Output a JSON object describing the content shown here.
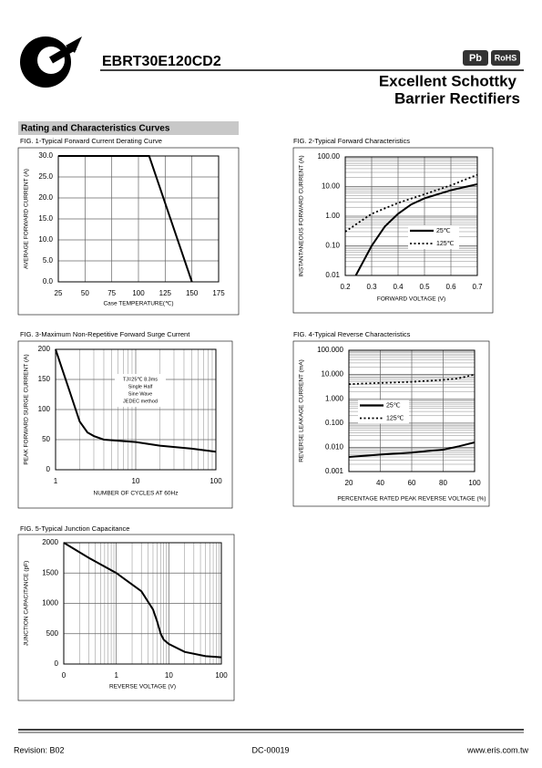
{
  "header": {
    "part_number": "EBRT30E120CD2",
    "badges": [
      "Pb",
      "RoHS"
    ],
    "title": [
      "Excellent Schottky",
      "Barrier Rectifiers"
    ],
    "section": "Rating and Characteristics Curves"
  },
  "chart_data": [
    {
      "type": "line",
      "title": "FIG. 1-Typical Forward Current Derating Curve",
      "xlabel": "Case TEMPERATURE(℃)",
      "ylabel": "AVERAGE FORWARD CURRENT (A)",
      "x": [
        25,
        110,
        150
      ],
      "values": [
        30,
        30,
        0
      ],
      "color": "#000000",
      "xlim": [
        25,
        175
      ],
      "xticks": [
        25,
        50,
        75,
        100,
        125,
        150,
        175
      ],
      "ylim": [
        0,
        30
      ],
      "yticks": [
        {
          "value": 0,
          "label": "0.0"
        },
        {
          "value": 5,
          "label": "5.0"
        },
        {
          "value": 10,
          "label": "10.0"
        },
        {
          "value": 15,
          "label": "15.0"
        },
        {
          "value": 20,
          "label": "20.0"
        },
        {
          "value": 25,
          "label": "25.0"
        },
        {
          "value": 30,
          "label": "30.0"
        }
      ],
      "grid": true
    },
    {
      "type": "line",
      "title": "FIG. 2-Typical Forward Characteristics",
      "xlabel": "FORWARD VOLTAGE (V)",
      "ylabel": "INSTANTANEOUS FORWARD CURRENT (A)",
      "yscale": "log",
      "series": [
        {
          "name": "25℃",
          "color": "#000000",
          "style": "solid",
          "x": [
            0.24,
            0.3,
            0.35,
            0.4,
            0.45,
            0.5,
            0.6,
            0.7
          ],
          "values": [
            0.01,
            0.1,
            0.45,
            1.2,
            2.5,
            4,
            7.5,
            12
          ]
        },
        {
          "name": "125℃",
          "color": "#000000",
          "style": "dotted",
          "x": [
            0.2,
            0.3,
            0.4,
            0.5,
            0.6,
            0.7
          ],
          "values": [
            0.3,
            1.2,
            2.8,
            5.5,
            11,
            25
          ]
        }
      ],
      "xlim": [
        0.2,
        0.7
      ],
      "xticks": [
        0.2,
        0.3,
        0.4,
        0.5,
        0.6,
        0.7
      ],
      "ylim": [
        0.01,
        100
      ],
      "yticks": [
        0.01,
        {
          "value": 0.1,
          "label": "0.10"
        },
        {
          "value": 1,
          "label": "1.00"
        },
        {
          "value": 10,
          "label": "10.00"
        },
        {
          "value": 100,
          "label": "100.00"
        }
      ],
      "grid": true,
      "legend": "center-right"
    },
    {
      "type": "line",
      "title": "FIG. 3-Maximum Non-Repetitive Forward Surge Current",
      "xlabel": "NUMBER OF CYCLES AT 60Hz",
      "ylabel": "PEAK FORWARD SURGE CURRENT (A)",
      "xscale": "log",
      "annotation": [
        "TJ=25℃ 8.3ms",
        "Single Half",
        "Sine Wave",
        "JEDEC method"
      ],
      "x": [
        1,
        1.5,
        2,
        2.5,
        3,
        4,
        5,
        10,
        20,
        50,
        100
      ],
      "values": [
        200,
        130,
        80,
        62,
        56,
        50,
        49,
        46,
        40,
        35,
        30
      ],
      "color": "#000000",
      "xlim": [
        1,
        100
      ],
      "xticks": [
        1,
        10,
        100
      ],
      "ylim": [
        0,
        200
      ],
      "yticks": [
        0,
        50,
        100,
        150,
        200
      ],
      "grid": true
    },
    {
      "type": "line",
      "title": "FIG. 4-Typical Reverse Characteristics",
      "xlabel": "PERCENTAGE RATED PEAK REVERSE VOLTAGE (%)",
      "ylabel": "REVERSE LEAKAGE CURRENT (mA)",
      "yscale": "log",
      "series": [
        {
          "name": "25℃",
          "color": "#000000",
          "style": "solid",
          "x": [
            20,
            40,
            60,
            70,
            80,
            90,
            100
          ],
          "values": [
            0.004,
            0.005,
            0.006,
            0.007,
            0.008,
            0.011,
            0.016
          ]
        },
        {
          "name": "125℃",
          "color": "#000000",
          "style": "dotted",
          "x": [
            20,
            40,
            60,
            80,
            90,
            100
          ],
          "values": [
            4,
            4.5,
            5,
            6,
            7,
            10
          ]
        }
      ],
      "xlim": [
        20,
        100
      ],
      "xticks": [
        20,
        40,
        60,
        80,
        100
      ],
      "ylim": [
        0.001,
        100
      ],
      "yticks": [
        0.001,
        {
          "value": 0.01,
          "label": "0.010"
        },
        {
          "value": 0.1,
          "label": "0.100"
        },
        {
          "value": 1,
          "label": "1.000"
        },
        {
          "value": 10,
          "label": "10.000"
        },
        {
          "value": 100,
          "label": "100.000"
        }
      ],
      "grid": true,
      "legend": "center-left"
    },
    {
      "type": "line",
      "title": "FIG. 5-Typical Junction Capacitance",
      "xlabel": "REVERSE VOLTAGE (V)",
      "ylabel": "JUNCTION CAPACITANCE (pF)",
      "xscale": "log",
      "x": [
        0.1,
        0.3,
        1,
        3,
        5,
        6,
        7,
        8,
        10,
        20,
        50,
        100
      ],
      "values": [
        2000,
        1750,
        1500,
        1200,
        900,
        700,
        500,
        400,
        330,
        200,
        130,
        110
      ],
      "color": "#000000",
      "xlim": [
        0.1,
        100
      ],
      "xticks": [
        {
          "value": 0.1,
          "label": "0"
        },
        1,
        10,
        100
      ],
      "ylim": [
        0,
        2000
      ],
      "yticks": [
        0,
        500,
        1000,
        1500,
        2000
      ],
      "grid": true
    }
  ],
  "footer": {
    "revision": "Revision: B02",
    "doc": "DC-00019",
    "website": "www.eris.com.tw"
  }
}
